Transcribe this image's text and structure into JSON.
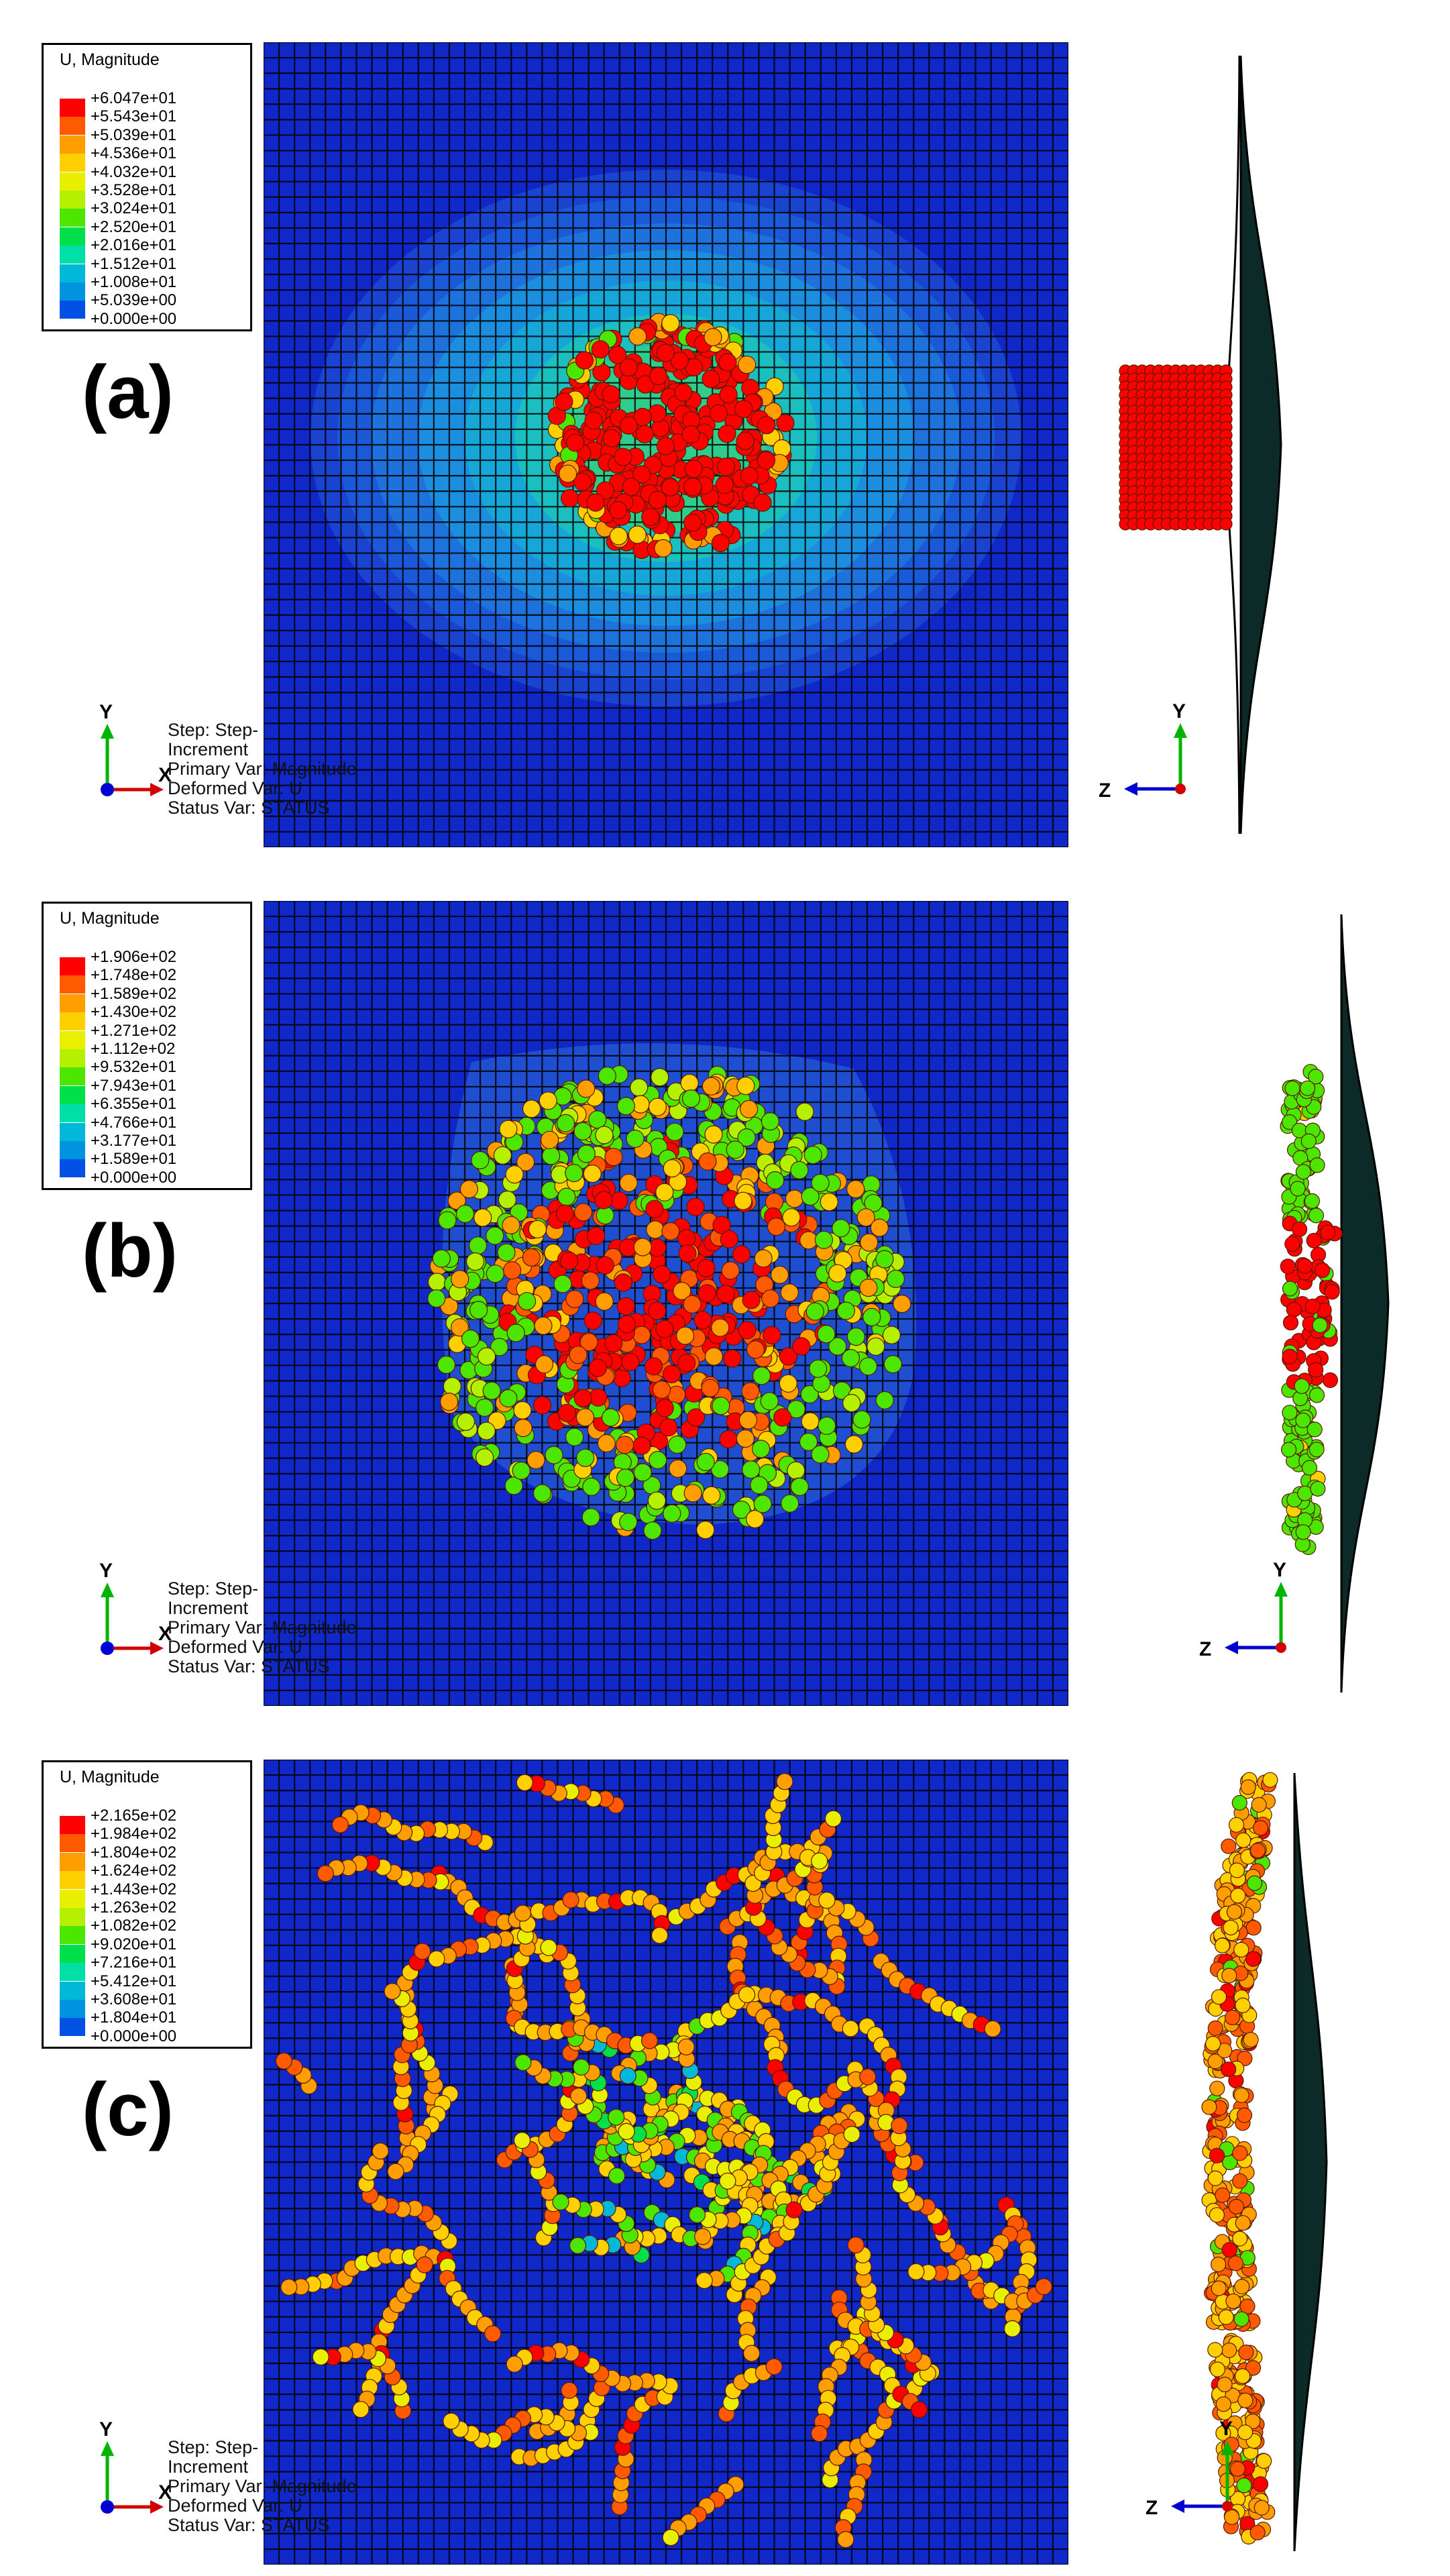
{
  "panels": [
    {
      "label": "(a)",
      "legend": {
        "title": "U, Magnitude",
        "ticks": [
          "+6.047e+01",
          "+5.543e+01",
          "+5.039e+01",
          "+4.536e+01",
          "+4.032e+01",
          "+3.528e+01",
          "+3.024e+01",
          "+2.520e+01",
          "+2.016e+01",
          "+1.512e+01",
          "+1.008e+01",
          "+5.039e+00",
          "+0.000e+00"
        ]
      },
      "status": [
        "Step: Step-",
        "Increment",
        "Primary Var: Magnitude",
        "Deformed Var: U",
        "Status Var: STATUS"
      ],
      "field": "concentrated-contours",
      "particles": "compact-disk"
    },
    {
      "label": "(b)",
      "legend": {
        "title": "U, Magnitude",
        "ticks": [
          "+1.906e+02",
          "+1.748e+02",
          "+1.589e+02",
          "+1.430e+02",
          "+1.271e+02",
          "+1.112e+02",
          "+9.532e+01",
          "+7.943e+01",
          "+6.355e+01",
          "+4.766e+01",
          "+3.177e+01",
          "+1.589e+01",
          "+0.000e+00"
        ]
      },
      "status": [
        "Step: Step-",
        "Increment",
        "Primary Var: Magnitude",
        "Deformed Var: U",
        "Status Var: STATUS"
      ],
      "field": "spreading-cloud",
      "particles": "dispersed-cloud"
    },
    {
      "label": "(c)",
      "legend": {
        "title": "U, Magnitude",
        "ticks": [
          "+2.165e+02",
          "+1.984e+02",
          "+1.804e+02",
          "+1.624e+02",
          "+1.443e+02",
          "+1.263e+02",
          "+1.082e+02",
          "+9.020e+01",
          "+7.216e+01",
          "+5.412e+01",
          "+3.608e+01",
          "+1.804e+01",
          "+0.000e+00"
        ]
      },
      "status": [
        "Step: Step-",
        "Increment",
        "Primary Var: Magnitude",
        "Deformed Var: U",
        "Status Var: STATUS"
      ],
      "field": "uniform-plate",
      "particles": "fragmented-network"
    }
  ],
  "triad": {
    "x_label": "X",
    "y_label": "Y",
    "z_label": "Z"
  },
  "colors": {
    "scale": [
      "#FF0000",
      "#FF5A00",
      "#FF9E00",
      "#FFD000",
      "#E8F000",
      "#B4F000",
      "#4CE600",
      "#00E04A",
      "#00DFA8",
      "#00B8D8",
      "#0094E0",
      "#0050E4",
      "#0000FF"
    ],
    "plate": "#1128C8",
    "mesh_line": "#000000",
    "x_axis": "#D20000",
    "y_axis": "#00B400",
    "z_axis": "#0000D2"
  }
}
